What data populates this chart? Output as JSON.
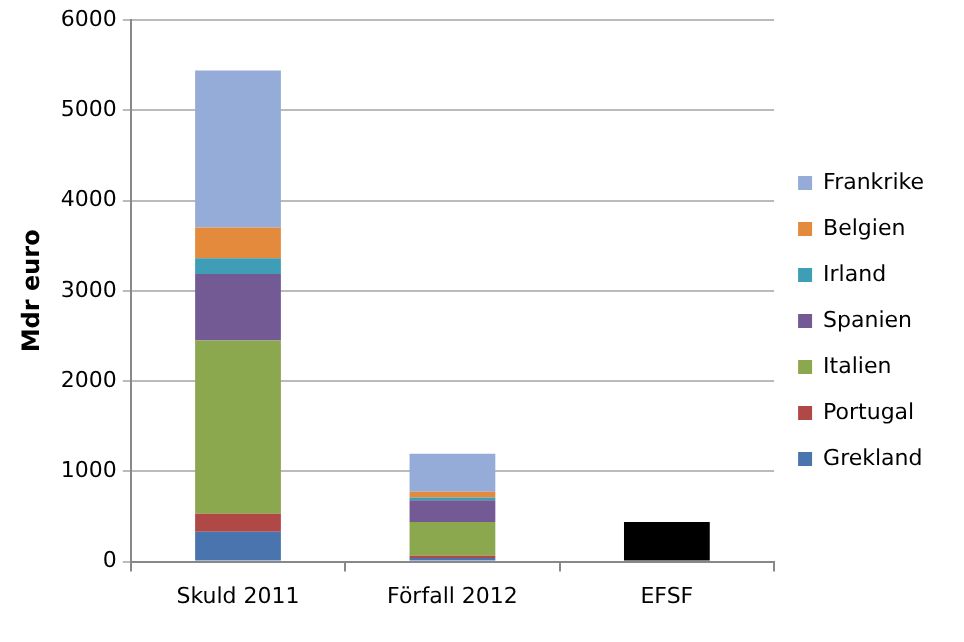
{
  "chart_data": {
    "type": "bar",
    "stacked": true,
    "ylabel": "Mdr euro",
    "categories": [
      "Skuld 2011",
      "Förfall 2012",
      "EFSF"
    ],
    "ylim": [
      0,
      6000
    ],
    "yticks": [
      0,
      1000,
      2000,
      3000,
      4000,
      5000,
      6000
    ],
    "grid": "y",
    "legend": "right",
    "series": [
      {
        "name": "Grekland",
        "color": "#4a74ad",
        "values": [
          330,
          40,
          null
        ]
      },
      {
        "name": "Portugal",
        "color": "#b04845",
        "values": [
          200,
          25,
          null
        ]
      },
      {
        "name": "Italien",
        "color": "#8ca84e",
        "values": [
          1920,
          375,
          null
        ]
      },
      {
        "name": "Spanien",
        "color": "#735a95",
        "values": [
          735,
          240,
          null
        ]
      },
      {
        "name": "Irland",
        "color": "#3f9db5",
        "values": [
          175,
          30,
          null
        ]
      },
      {
        "name": "Belgien",
        "color": "#e48a3c",
        "values": [
          340,
          65,
          null
        ]
      },
      {
        "name": "Frankrike",
        "color": "#96acd8",
        "values": [
          1740,
          420,
          null
        ]
      },
      {
        "color": "#000000",
        "values": [
          null,
          null,
          440
        ]
      }
    ]
  }
}
